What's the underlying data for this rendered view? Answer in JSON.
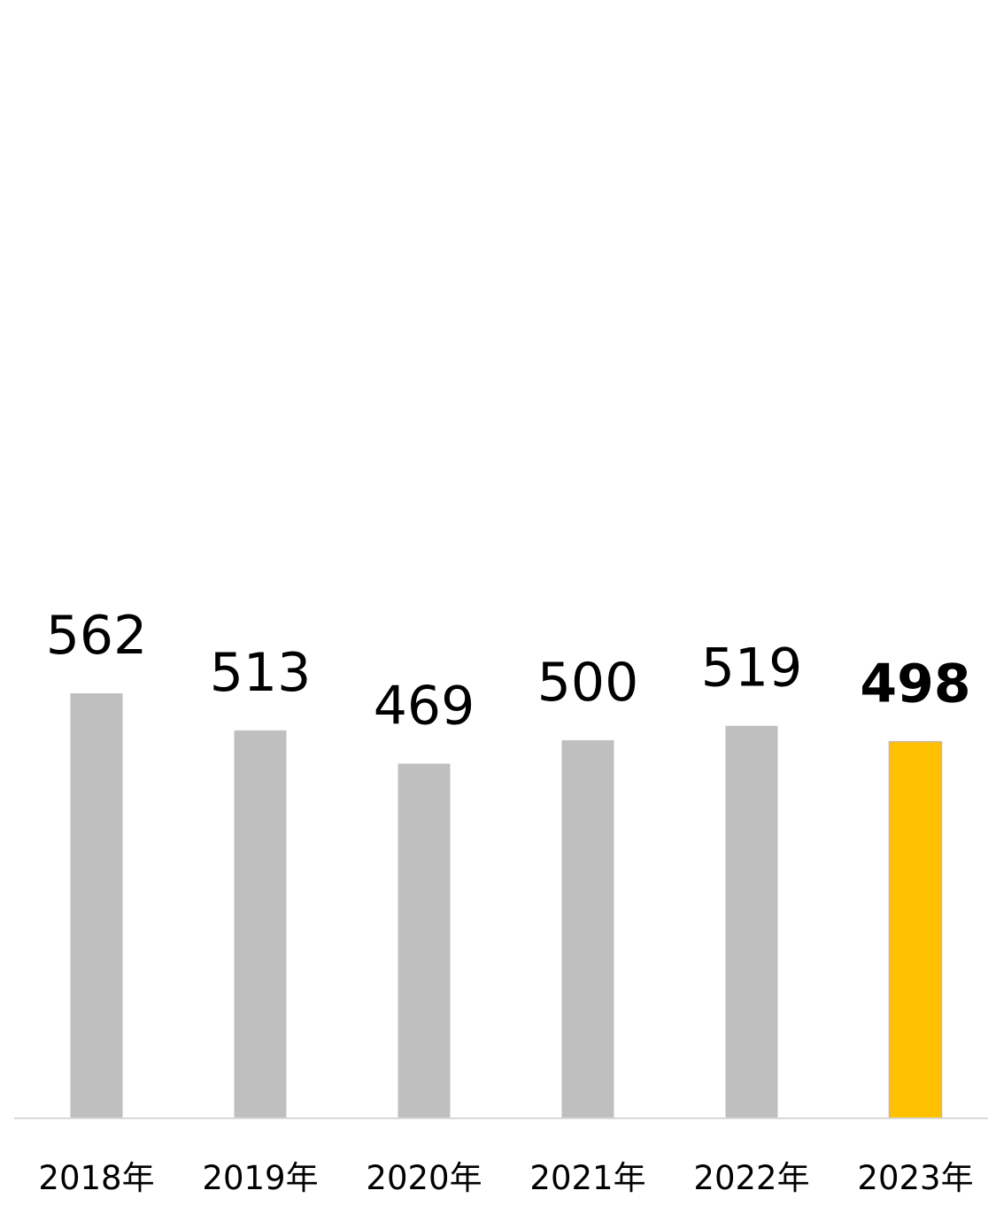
{
  "chart_data": {
    "type": "bar",
    "categories": [
      "2018年",
      "2019年",
      "2020年",
      "2021年",
      "2022年",
      "2023年"
    ],
    "values": [
      562,
      513,
      469,
      500,
      519,
      498
    ],
    "value_labels": [
      "562",
      "513",
      "469",
      "500",
      "519",
      "498"
    ],
    "highlight_index": 5,
    "title": "",
    "xlabel": "",
    "ylabel": "",
    "ylim": [
      0,
      562
    ],
    "grid": false,
    "legend": "none",
    "colors": {
      "bar": "#bfbfbf",
      "highlight_bar": "#ffc000",
      "highlight_bar_border": "#c8b898",
      "axis": "#d9d9d9",
      "text": "#000000"
    }
  }
}
